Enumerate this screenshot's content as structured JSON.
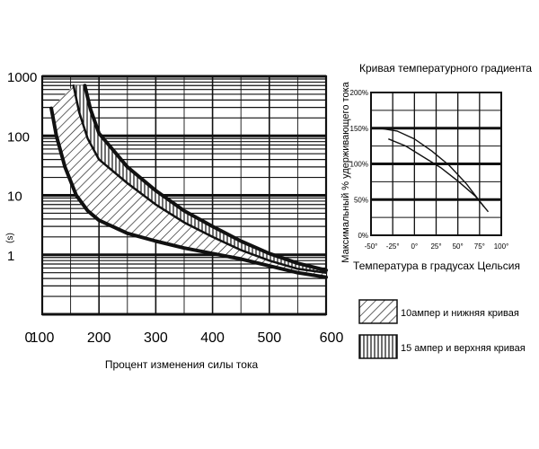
{
  "chart_data": [
    {
      "type": "area",
      "xlabel": "Процент изменения силы тока",
      "ylabel": "(s)",
      "x_ticks": [
        "0",
        "100",
        "200",
        "300",
        "400",
        "500",
        "600"
      ],
      "y_ticks": [
        "1000",
        "100",
        "10",
        "1"
      ],
      "xlim": [
        100,
        600
      ],
      "ylim_log": [
        0.1,
        1000
      ],
      "grid": true,
      "legend_position": "bottom-right",
      "series": [
        {
          "name": "10ампер и нижняя кривая",
          "hatch": "diagonal",
          "lower": [
            [
              116,
              290
            ],
            [
              125,
              100
            ],
            [
              140,
              30
            ],
            [
              160,
              10
            ],
            [
              180,
              5.5
            ],
            [
              200,
              3.8
            ],
            [
              250,
              2.3
            ],
            [
              300,
              1.7
            ],
            [
              350,
              1.3
            ],
            [
              400,
              1.05
            ],
            [
              450,
              0.85
            ],
            [
              500,
              0.65
            ],
            [
              550,
              0.5
            ],
            [
              600,
              0.42
            ]
          ],
          "upper": [
            [
              155,
              700
            ],
            [
              165,
              250
            ],
            [
              180,
              90
            ],
            [
              200,
              40
            ],
            [
              250,
              16
            ],
            [
              300,
              7
            ],
            [
              350,
              3.5
            ],
            [
              400,
              2
            ],
            [
              450,
              1.2
            ],
            [
              500,
              0.8
            ],
            [
              550,
              0.58
            ],
            [
              600,
              0.5
            ]
          ]
        },
        {
          "name": "15 ампер и верхняя кривая",
          "hatch": "vertical",
          "lower": [
            [
              155,
              700
            ],
            [
              165,
              250
            ],
            [
              180,
              90
            ],
            [
              200,
              40
            ],
            [
              250,
              16
            ],
            [
              300,
              7
            ],
            [
              350,
              3.5
            ],
            [
              400,
              2
            ],
            [
              450,
              1.2
            ],
            [
              500,
              0.8
            ],
            [
              550,
              0.58
            ],
            [
              600,
              0.5
            ]
          ],
          "upper": [
            [
              175,
              700
            ],
            [
              185,
              280
            ],
            [
              200,
              110
            ],
            [
              250,
              30
            ],
            [
              300,
              12
            ],
            [
              350,
              5.5
            ],
            [
              400,
              3
            ],
            [
              450,
              1.7
            ],
            [
              500,
              1.05
            ],
            [
              550,
              0.72
            ],
            [
              600,
              0.55
            ]
          ]
        }
      ]
    },
    {
      "type": "line",
      "title": "Кривая температурного градиента",
      "xlabel": "Температура в градусах Цельсия",
      "ylabel": "Максимальный % удерживающего тока",
      "x_ticks": [
        "-50°",
        "-25°",
        "0°",
        "25°",
        "50°",
        "75°",
        "100°"
      ],
      "y_ticks": [
        "200%",
        "150%",
        "100%",
        "50%",
        "0%"
      ],
      "xlim": [
        -50,
        100
      ],
      "ylim": [
        0,
        200
      ],
      "grid": true,
      "series": [
        {
          "x": [
            -40,
            -20,
            0,
            20,
            40,
            60,
            80
          ],
          "y": [
            150,
            146,
            135,
            118,
            98,
            72,
            40
          ]
        },
        {
          "x": [
            -30,
            -10,
            10,
            30,
            50,
            70,
            85
          ],
          "y": [
            135,
            125,
            110,
            95,
            76,
            55,
            33
          ]
        }
      ]
    }
  ]
}
